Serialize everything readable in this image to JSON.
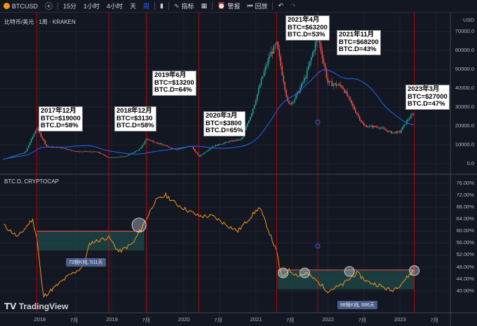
{
  "toolbar": {
    "symbol": "BTCUSD",
    "intervals": [
      "15分",
      "1小时",
      "4小时",
      "天",
      "周"
    ],
    "active_interval": 4,
    "indicators_label": "指标",
    "alert_label": "警报",
    "replay_label": "回放"
  },
  "chart": {
    "title": "比特币/美元 · 1周 · KRAKEN",
    "currency": "USD",
    "indicator_title": "BTC.D, CRYPTOCAP",
    "price_axis": [
      "70000.0",
      "60000.0",
      "50000.0",
      "40000.0",
      "30000.0",
      "20000.0",
      "10000.0",
      "0.0"
    ],
    "dominance_axis": [
      "76.00%",
      "72.00%",
      "68.00%",
      "64.00%",
      "60.00%",
      "56.00%",
      "52.00%",
      "48.00%",
      "44.00%",
      "40.00%"
    ],
    "time_axis": [
      "2018",
      "7月",
      "2019",
      "7月",
      "2020",
      "7月",
      "2021",
      "7月",
      "2022",
      "7月",
      "2023",
      "7月"
    ],
    "ranges": [
      {
        "text": "73根K线, 511天"
      },
      {
        "text": "98根K线, 686天"
      }
    ]
  },
  "annotations": [
    {
      "lines": [
        "2017年12月",
        "BTC=$19000",
        "BTC.D=58%"
      ]
    },
    {
      "lines": [
        "2018年12月",
        "BTC=$3130",
        "BTC.D=58%"
      ]
    },
    {
      "lines": [
        "2019年6月",
        "BTC=$13200",
        "BTC.D=64%"
      ]
    },
    {
      "lines": [
        "2020年3月",
        "BTC=$3800",
        "BTC.D=65%"
      ]
    },
    {
      "lines": [
        "2021年4月",
        "BTC=$63200",
        "BTC.D=53%"
      ]
    },
    {
      "lines": [
        "2021年11月",
        "BTC=$68200",
        "BTC.D=43%"
      ]
    },
    {
      "lines": [
        "2023年3月",
        "BTC=$27000",
        "BTC.D=47%"
      ]
    }
  ],
  "brand": "TradingView",
  "colors": {
    "background": "#131722",
    "candle_up": "#26a69a",
    "candle_down": "#ef5350",
    "ma": "#2962ff",
    "dominance": "#f7931a",
    "marker": "#ff0000"
  },
  "chart_data": [
    {
      "type": "line",
      "title": "比特币/美元 · 1周 · KRAKEN",
      "ylabel": "USD",
      "ylim": [
        0,
        72000
      ],
      "series": [
        {
          "values": [
            [
              2017.5,
              2500
            ],
            [
              2017.8,
              6000
            ],
            [
              2017.96,
              19000
            ],
            [
              2018.1,
              9000
            ],
            [
              2018.3,
              8500
            ],
            [
              2018.5,
              6500
            ],
            [
              2018.8,
              6300
            ],
            [
              2018.96,
              3130
            ],
            [
              2019.2,
              4000
            ],
            [
              2019.4,
              8000
            ],
            [
              2019.48,
              13200
            ],
            [
              2019.7,
              10000
            ],
            [
              2019.9,
              7500
            ],
            [
              2020.1,
              9500
            ],
            [
              2020.21,
              3800
            ],
            [
              2020.4,
              9200
            ],
            [
              2020.6,
              11500
            ],
            [
              2020.8,
              13000
            ],
            [
              2020.95,
              28000
            ],
            [
              2021.1,
              47000
            ],
            [
              2021.2,
              58000
            ],
            [
              2021.29,
              63200
            ],
            [
              2021.45,
              31000
            ],
            [
              2021.55,
              35000
            ],
            [
              2021.7,
              47000
            ],
            [
              2021.86,
              68200
            ],
            [
              2022.0,
              43000
            ],
            [
              2022.2,
              41000
            ],
            [
              2022.35,
              30000
            ],
            [
              2022.5,
              20000
            ],
            [
              2022.7,
              19500
            ],
            [
              2022.88,
              16500
            ],
            [
              2023.0,
              16800
            ],
            [
              2023.1,
              23000
            ],
            [
              2023.2,
              27000
            ]
          ]
        }
      ]
    },
    {
      "type": "line",
      "title": "BTC.D, CRYPTOCAP",
      "ylabel": "%",
      "ylim": [
        38,
        77
      ],
      "series": [
        {
          "values": [
            [
              2017.5,
              62
            ],
            [
              2017.7,
              58
            ],
            [
              2017.9,
              64
            ],
            [
              2017.96,
              58
            ],
            [
              2018.05,
              38
            ],
            [
              2018.2,
              41
            ],
            [
              2018.4,
              45
            ],
            [
              2018.6,
              48
            ],
            [
              2018.7,
              56
            ],
            [
              2018.96,
              58
            ],
            [
              2019.1,
              53
            ],
            [
              2019.3,
              56
            ],
            [
              2019.48,
              64
            ],
            [
              2019.6,
              70
            ],
            [
              2019.75,
              72
            ],
            [
              2019.9,
              69
            ],
            [
              2020.05,
              67
            ],
            [
              2020.21,
              65
            ],
            [
              2020.4,
              65
            ],
            [
              2020.6,
              62
            ],
            [
              2020.75,
              60
            ],
            [
              2020.9,
              64
            ],
            [
              2021.05,
              68
            ],
            [
              2021.15,
              62
            ],
            [
              2021.29,
              53
            ],
            [
              2021.36,
              44
            ],
            [
              2021.45,
              47
            ],
            [
              2021.6,
              45
            ],
            [
              2021.7,
              46
            ],
            [
              2021.86,
              43
            ],
            [
              2022.0,
              40
            ],
            [
              2022.2,
              42
            ],
            [
              2022.4,
              46
            ],
            [
              2022.55,
              43
            ],
            [
              2022.7,
              42
            ],
            [
              2022.88,
              40
            ],
            [
              2023.0,
              42
            ],
            [
              2023.2,
              47
            ]
          ]
        }
      ]
    }
  ]
}
